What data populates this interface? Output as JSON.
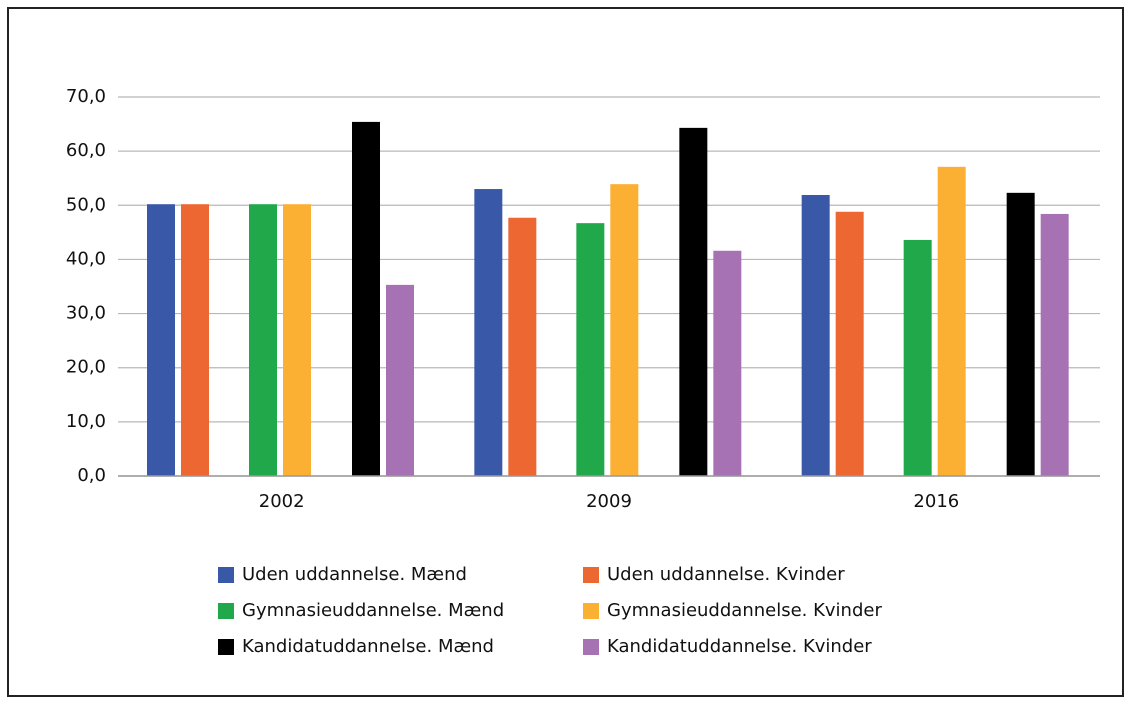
{
  "chart_data": {
    "type": "bar",
    "categories": [
      "2002",
      "2009",
      "2016"
    ],
    "series": [
      {
        "name": "Uden uddannelse. Mænd",
        "color": "#3a58a8",
        "values": [
          50.2,
          53.0,
          51.9
        ]
      },
      {
        "name": "Uden uddannelse. Kvinder",
        "color": "#ec6731",
        "values": [
          50.2,
          47.7,
          48.8
        ]
      },
      {
        "name": "Gymnasieuddannelse. Mænd",
        "color": "#20a84b",
        "values": [
          50.2,
          46.7,
          43.6
        ]
      },
      {
        "name": "Gymnasieuddannelse. Kvinder",
        "color": "#fbaf33",
        "values": [
          50.2,
          53.9,
          57.1
        ]
      },
      {
        "name": "Kandidatuddannelse. Mænd",
        "color": "#000000",
        "values": [
          65.4,
          64.3,
          52.3
        ]
      },
      {
        "name": "Kandidatuddannelse. Kvinder",
        "color": "#a772b3",
        "values": [
          35.3,
          41.6,
          48.4
        ]
      }
    ],
    "ylim": [
      0,
      70
    ],
    "yticks": [
      {
        "value": 0,
        "label": "0,0"
      },
      {
        "value": 10,
        "label": "10,0"
      },
      {
        "value": 20,
        "label": "20,0"
      },
      {
        "value": 30,
        "label": "30,0"
      },
      {
        "value": 40,
        "label": "40,0"
      },
      {
        "value": 50,
        "label": "50,0"
      },
      {
        "value": 60,
        "label": "60,0"
      },
      {
        "value": 70,
        "label": "70,0"
      }
    ],
    "grid": true
  }
}
